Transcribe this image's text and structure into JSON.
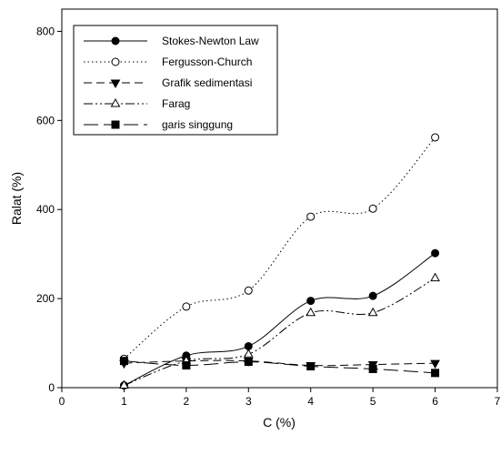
{
  "chart_data": {
    "type": "line",
    "xlabel": "C (%)",
    "ylabel": "Ralat (%)",
    "xlim": [
      0,
      7
    ],
    "ylim": [
      0,
      850
    ],
    "xticks": [
      0,
      1,
      2,
      3,
      4,
      5,
      6,
      7
    ],
    "yticks": [
      0,
      200,
      400,
      600,
      800
    ],
    "grid": false,
    "legend_position": "top-left",
    "x": [
      1,
      2,
      3,
      4,
      5,
      6
    ],
    "series": [
      {
        "name": "Stokes-Newton Law",
        "values": [
          5,
          72,
          93,
          195,
          206,
          302
        ],
        "marker": "circle-filled",
        "dash": "solid"
      },
      {
        "name": "Fergusson-Church",
        "values": [
          65,
          182,
          218,
          384,
          402,
          562
        ],
        "marker": "circle-open",
        "dash": "dotted"
      },
      {
        "name": "Grafik sedimentasi",
        "values": [
          55,
          60,
          60,
          50,
          52,
          55
        ],
        "marker": "triangle-down-filled",
        "dash": "dashed"
      },
      {
        "name": "Farag",
        "values": [
          5,
          60,
          75,
          168,
          168,
          246
        ],
        "marker": "triangle-up-open",
        "dash": "dashdotdot"
      },
      {
        "name": "garis singgung",
        "values": [
          60,
          50,
          58,
          48,
          42,
          33
        ],
        "marker": "square-filled",
        "dash": "longdash"
      }
    ]
  }
}
